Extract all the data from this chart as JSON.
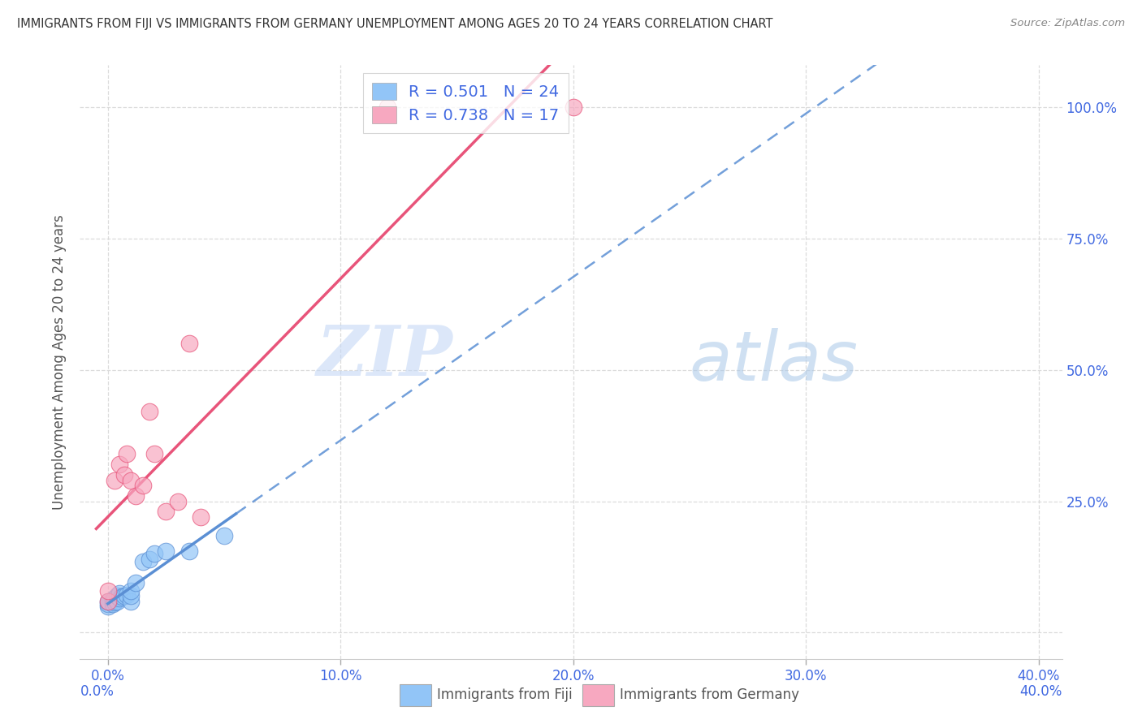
{
  "title": "IMMIGRANTS FROM FIJI VS IMMIGRANTS FROM GERMANY UNEMPLOYMENT AMONG AGES 20 TO 24 YEARS CORRELATION CHART",
  "source": "Source: ZipAtlas.com",
  "ylabel": "Unemployment Among Ages 20 to 24 years",
  "watermark_zip": "ZIP",
  "watermark_atlas": "atlas",
  "fiji_color": "#92C5F7",
  "fiji_line_color": "#5B8FD4",
  "germany_color": "#F7A8C0",
  "germany_line_color": "#E8547A",
  "fiji_R": 0.501,
  "fiji_N": 24,
  "germany_R": 0.738,
  "germany_N": 17,
  "x_ticks": [
    0.0,
    0.1,
    0.2,
    0.3,
    0.4
  ],
  "x_tick_labels": [
    "0.0%",
    "10.0%",
    "20.0%",
    "30.0%",
    "40.0%"
  ],
  "y_ticks": [
    0.0,
    0.25,
    0.5,
    0.75,
    1.0
  ],
  "y_tick_labels": [
    "",
    "25.0%",
    "50.0%",
    "75.0%",
    "100.0%"
  ],
  "fiji_x": [
    0.0,
    0.0,
    0.0,
    0.002,
    0.002,
    0.003,
    0.003,
    0.004,
    0.004,
    0.005,
    0.005,
    0.006,
    0.007,
    0.008,
    0.01,
    0.01,
    0.01,
    0.012,
    0.015,
    0.018,
    0.02,
    0.025,
    0.035,
    0.05
  ],
  "fiji_y": [
    0.05,
    0.055,
    0.06,
    0.055,
    0.062,
    0.058,
    0.065,
    0.06,
    0.07,
    0.065,
    0.075,
    0.068,
    0.07,
    0.072,
    0.06,
    0.07,
    0.08,
    0.095,
    0.135,
    0.14,
    0.15,
    0.155,
    0.155,
    0.185
  ],
  "germany_x": [
    0.0,
    0.0,
    0.003,
    0.005,
    0.007,
    0.008,
    0.01,
    0.012,
    0.015,
    0.018,
    0.02,
    0.025,
    0.03,
    0.035,
    0.04,
    0.12,
    0.2
  ],
  "germany_y": [
    0.06,
    0.08,
    0.29,
    0.32,
    0.3,
    0.34,
    0.29,
    0.26,
    0.28,
    0.42,
    0.34,
    0.23,
    0.25,
    0.55,
    0.22,
    1.0,
    1.0
  ],
  "legend_color_fiji": "#92C5F7",
  "legend_color_germany": "#F7A8C0",
  "legend_text_color_RN": "#4169E1",
  "legend_text_color_label": "#333333",
  "background_color": "#FFFFFF",
  "grid_color": "#D8D8D8",
  "title_color": "#333333",
  "axis_label_color": "#555555",
  "tick_label_color": "#4169E1",
  "bottom_label_color": "#555555",
  "watermark_color": "#C5D8F5"
}
